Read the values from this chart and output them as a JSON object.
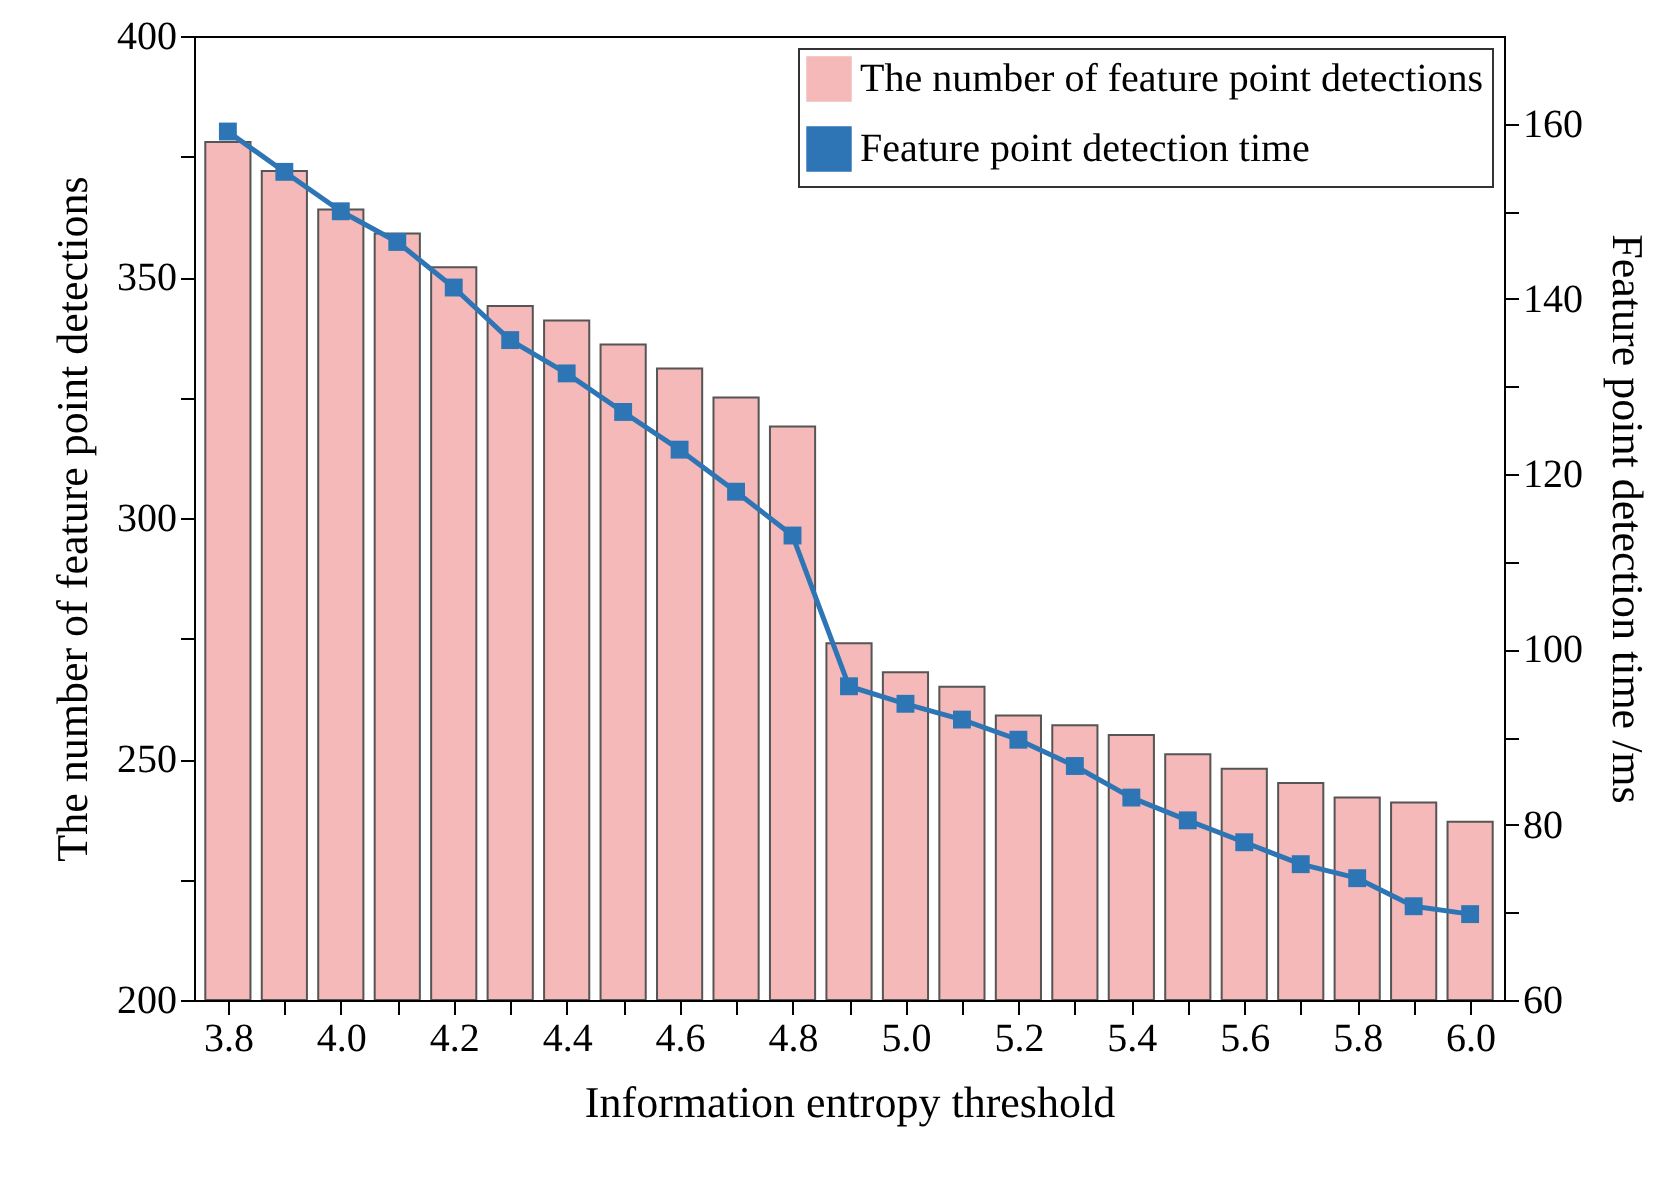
{
  "chart_data": {
    "type": "bar",
    "xlabel": "Information entropy threshold",
    "ylabel": "The number of feature point detections",
    "y2label": "Feature point detection time /ms",
    "x": [
      3.8,
      3.9,
      4.0,
      4.1,
      4.2,
      4.3,
      4.4,
      4.5,
      4.6,
      4.7,
      4.8,
      4.9,
      5.0,
      5.1,
      5.2,
      5.3,
      5.4,
      5.5,
      5.6,
      5.7,
      5.8,
      5.9,
      6.0
    ],
    "xlim": [
      3.74,
      6.06
    ],
    "xticks": [
      {
        "value": 3.8,
        "label": "3.8"
      },
      {
        "value": 3.9,
        "label": null
      },
      {
        "value": 4.0,
        "label": "4.0"
      },
      {
        "value": 4.1,
        "label": null
      },
      {
        "value": 4.2,
        "label": "4.2"
      },
      {
        "value": 4.3,
        "label": null
      },
      {
        "value": 4.4,
        "label": "4.4"
      },
      {
        "value": 4.5,
        "label": null
      },
      {
        "value": 4.6,
        "label": "4.6"
      },
      {
        "value": 4.7,
        "label": null
      },
      {
        "value": 4.8,
        "label": "4.8"
      },
      {
        "value": 4.9,
        "label": null
      },
      {
        "value": 5.0,
        "label": "5.0"
      },
      {
        "value": 5.1,
        "label": null
      },
      {
        "value": 5.2,
        "label": "5.2"
      },
      {
        "value": 5.3,
        "label": null
      },
      {
        "value": 5.4,
        "label": "5.4"
      },
      {
        "value": 5.5,
        "label": null
      },
      {
        "value": 5.6,
        "label": "5.6"
      },
      {
        "value": 5.7,
        "label": null
      },
      {
        "value": 5.8,
        "label": "5.8"
      },
      {
        "value": 5.9,
        "label": null
      },
      {
        "value": 6.0,
        "label": "6.0"
      }
    ],
    "ylim": [
      200,
      400
    ],
    "yticks": [
      200,
      {
        "value": 225,
        "label": null
      },
      250,
      {
        "value": 275,
        "label": null
      },
      300,
      {
        "value": 325,
        "label": null
      },
      350,
      {
        "value": 375,
        "label": null
      },
      400
    ],
    "y2lim": [
      60,
      170
    ],
    "y2ticks": [
      60,
      {
        "value": 70,
        "label": null
      },
      80,
      {
        "value": 90,
        "label": null
      },
      100,
      {
        "value": 110,
        "label": null
      },
      120,
      {
        "value": 130,
        "label": null
      },
      140,
      {
        "value": 150,
        "label": null
      },
      160
    ],
    "legend": "top right",
    "marker": "square",
    "series": [
      {
        "name": "The number of feature point detections",
        "color": "#f4b9b8",
        "values": [
          378,
          372,
          364,
          359,
          352,
          344,
          341,
          336,
          331,
          325,
          319,
          274,
          268,
          265,
          259,
          257,
          255,
          251,
          248,
          245,
          242,
          241,
          237
        ]
      },
      {
        "name": "Feature point detection time",
        "type": "line",
        "axis": "y2",
        "color": "#2e75b6",
        "values": [
          159.1,
          154.5,
          150.0,
          146.5,
          141.3,
          135.3,
          131.5,
          127.1,
          122.8,
          118.0,
          113.0,
          95.8,
          93.8,
          92.0,
          89.7,
          86.7,
          83.1,
          80.5,
          78.0,
          75.5,
          73.9,
          70.7,
          69.8
        ]
      }
    ]
  }
}
